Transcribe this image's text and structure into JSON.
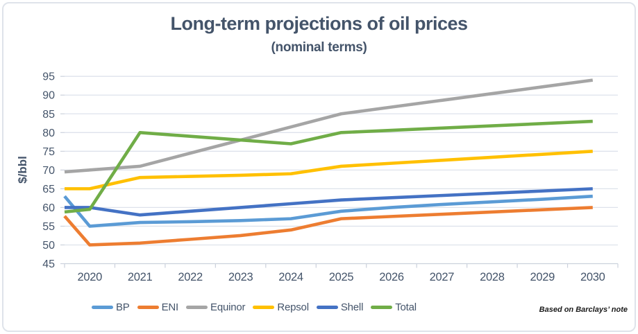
{
  "chart_data": {
    "type": "line",
    "title": "Long-term projections of oil prices",
    "subtitle": "(nominal terms)",
    "ylabel": "$/bbl",
    "attribution": "Based on Barclays’ note",
    "ylim": [
      45,
      95
    ],
    "ytick_step": 5,
    "grid": "horizontal",
    "legend_position": "bottom",
    "text_color": "#44546A",
    "gridline_color": "#DEE2EB",
    "axis_line_color": "#CBD1DC",
    "categories": [
      "2020",
      "2021",
      "2022",
      "2023",
      "2024",
      "2025",
      "2026",
      "2027",
      "2028",
      "2029",
      "2030"
    ],
    "series": [
      {
        "name": "BP",
        "color": "#5B9BD5",
        "axis_edge_value": 63,
        "values": [
          55,
          56,
          56.2,
          56.5,
          57,
          59,
          60,
          60.8,
          61.5,
          62.2,
          63
        ]
      },
      {
        "name": "ENI",
        "color": "#ED7D31",
        "axis_edge_value": 57.7,
        "values": [
          50,
          50.5,
          51.5,
          52.5,
          54,
          57,
          57.6,
          58.2,
          58.8,
          59.4,
          60
        ]
      },
      {
        "name": "Equinor",
        "color": "#A5A5A5",
        "axis_edge_value": 69.5,
        "values": [
          70,
          71,
          74.5,
          78,
          81.5,
          85,
          86.8,
          88.6,
          90.4,
          92.2,
          94
        ]
      },
      {
        "name": "Repsol",
        "color": "#FFC000",
        "axis_edge_value": 65,
        "values": [
          65,
          68,
          68.3,
          68.6,
          69,
          71,
          71.8,
          72.6,
          73.4,
          74.2,
          75
        ]
      },
      {
        "name": "Shell",
        "color": "#4472C4",
        "axis_edge_value": 60,
        "values": [
          60,
          58,
          59,
          60,
          61,
          62,
          62.6,
          63.2,
          63.8,
          64.4,
          65
        ]
      },
      {
        "name": "Total",
        "color": "#70AD47",
        "axis_edge_value": 58.8,
        "values": [
          59.5,
          80,
          79,
          78,
          77,
          80,
          80.6,
          81.2,
          81.8,
          82.4,
          83
        ]
      }
    ]
  }
}
